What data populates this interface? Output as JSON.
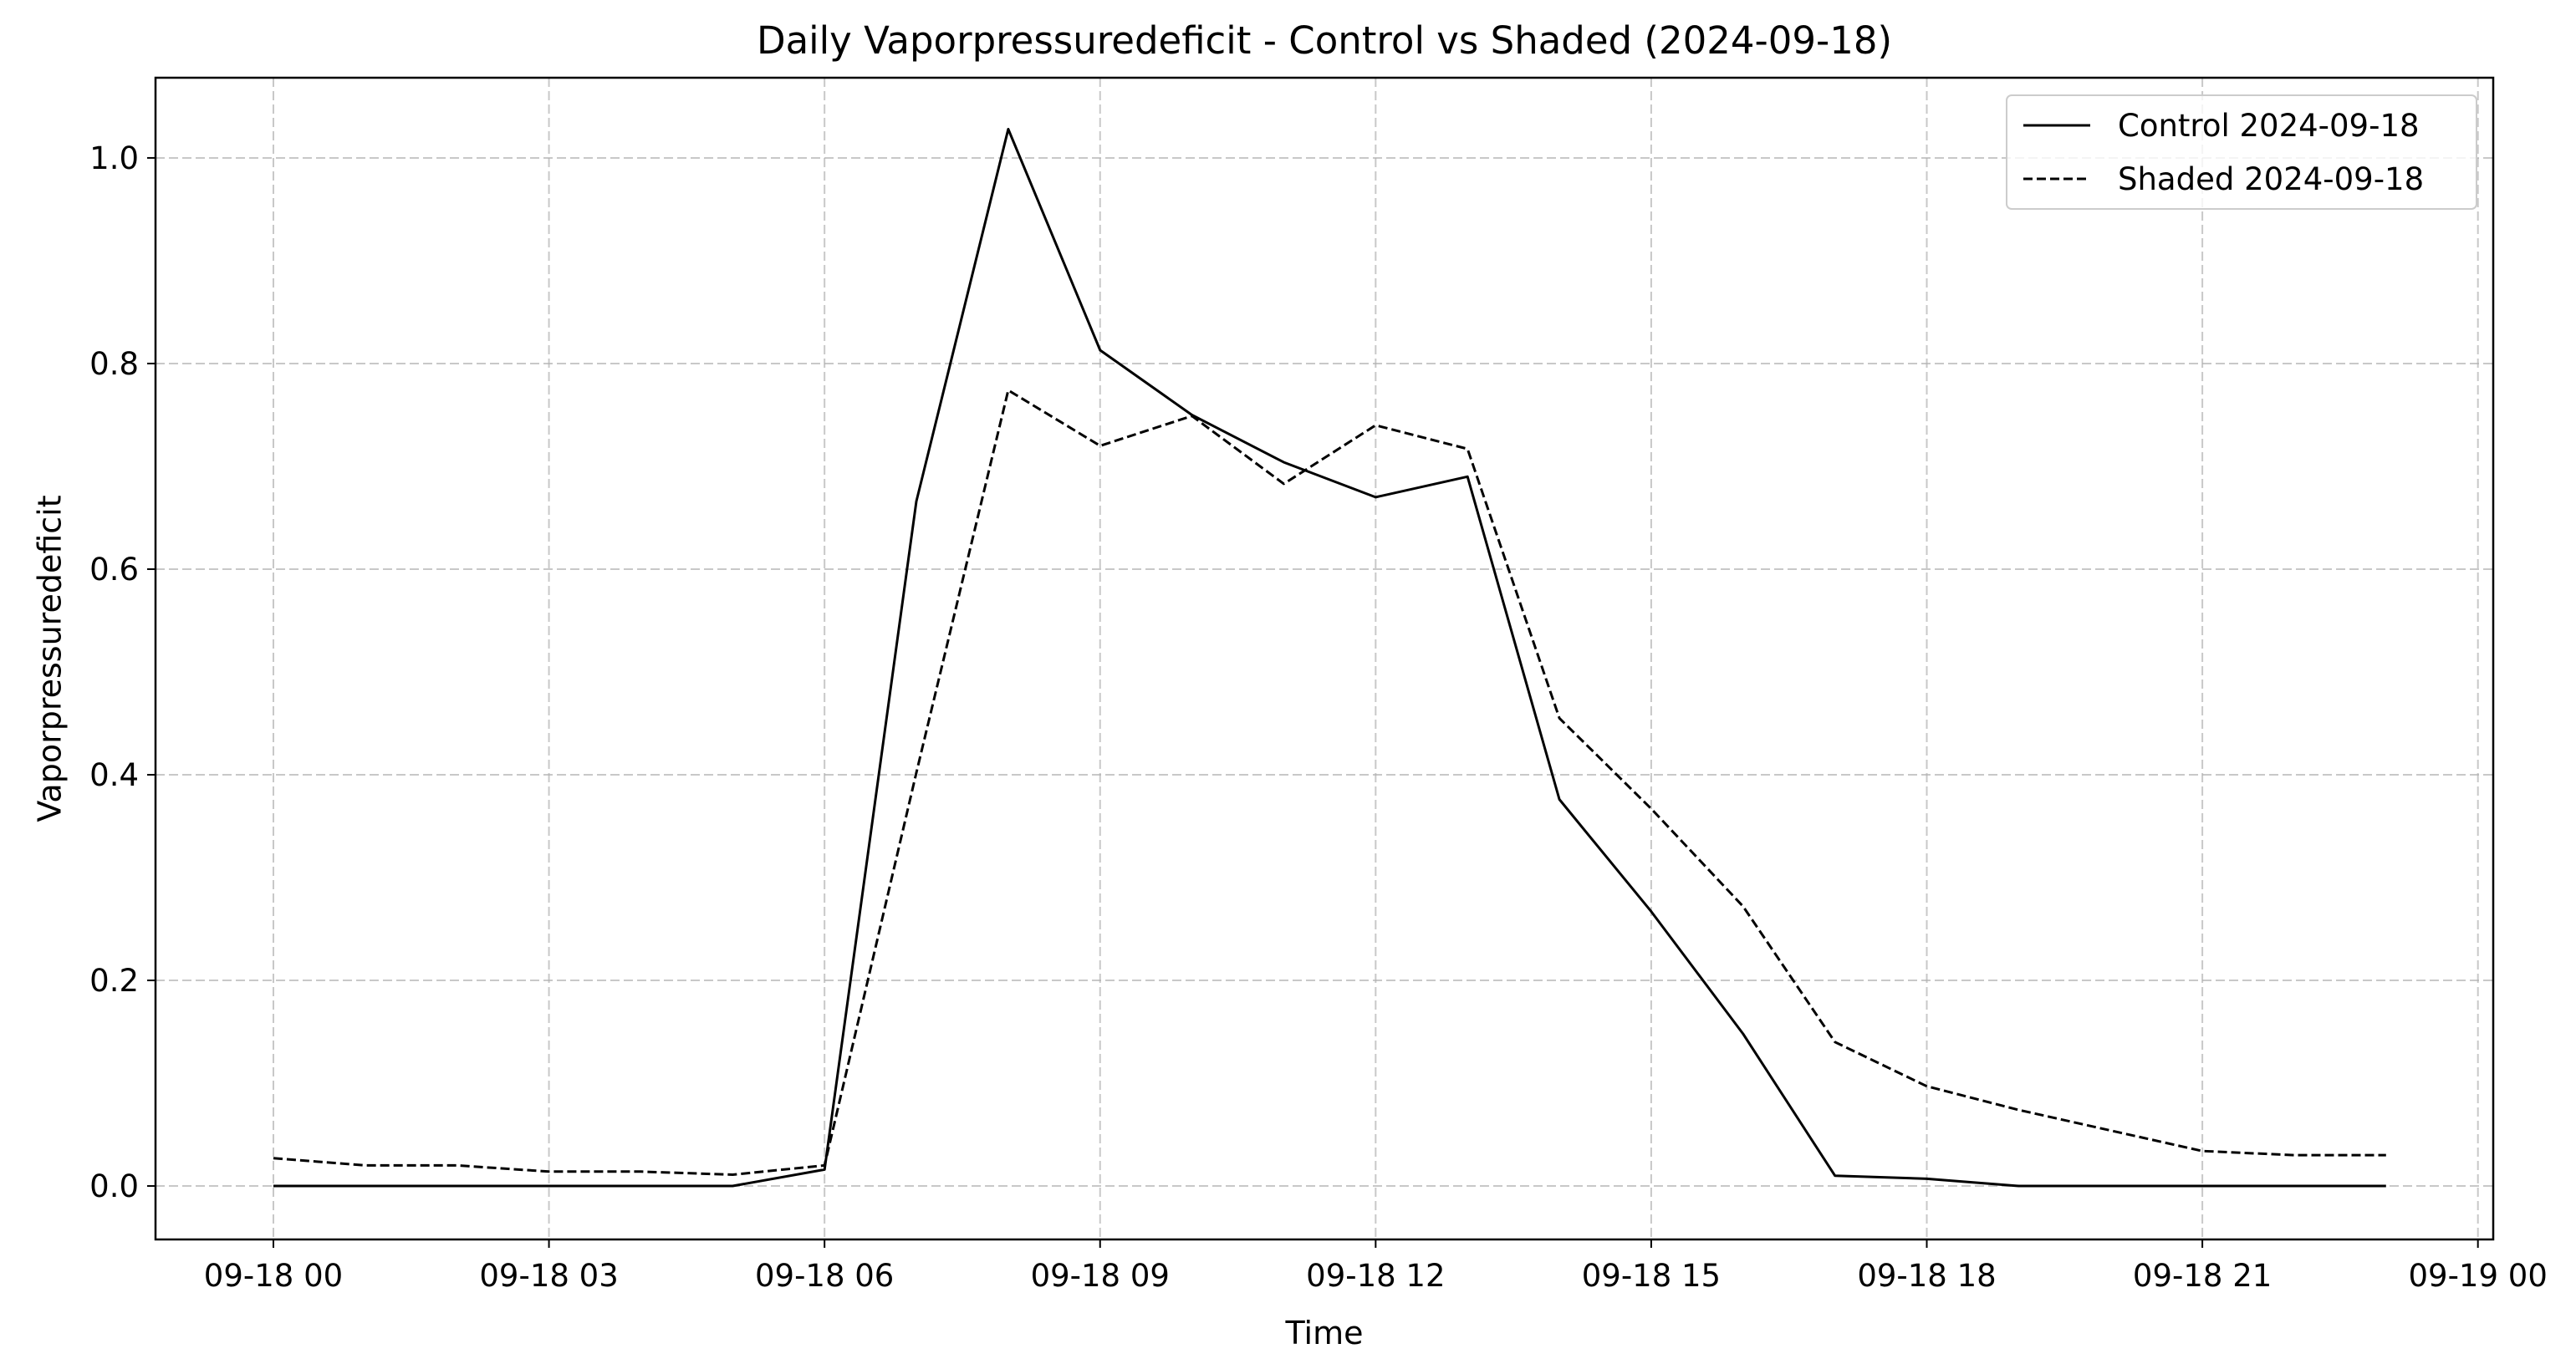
{
  "chart_data": {
    "type": "line",
    "title": "Daily Vaporpressuredeficit - Control vs Shaded (2024-09-18)",
    "xlabel": "Time",
    "ylabel": "Vaporpressuredeficit",
    "x_axis": {
      "kind": "datetime",
      "range": [
        "2024-09-17 22:43",
        "2024-09-19 00:10"
      ],
      "ticks": [
        {
          "value": "2024-09-18 00:00",
          "label": "09-18 00"
        },
        {
          "value": "2024-09-18 03:00",
          "label": "09-18 03"
        },
        {
          "value": "2024-09-18 06:00",
          "label": "09-18 06"
        },
        {
          "value": "2024-09-18 09:00",
          "label": "09-18 09"
        },
        {
          "value": "2024-09-18 12:00",
          "label": "09-18 12"
        },
        {
          "value": "2024-09-18 15:00",
          "label": "09-18 15"
        },
        {
          "value": "2024-09-18 18:00",
          "label": "09-18 18"
        },
        {
          "value": "2024-09-18 21:00",
          "label": "09-18 21"
        },
        {
          "value": "2024-09-19 00:00",
          "label": "09-19 00"
        }
      ]
    },
    "y_axis": {
      "range": [
        -0.052,
        1.078
      ],
      "ticks": [
        {
          "value": 0.0,
          "label": "0.0"
        },
        {
          "value": 0.2,
          "label": "0.2"
        },
        {
          "value": 0.4,
          "label": "0.4"
        },
        {
          "value": 0.6,
          "label": "0.6"
        },
        {
          "value": 0.8,
          "label": "0.8"
        },
        {
          "value": 1.0,
          "label": "1.0"
        }
      ]
    },
    "grid": true,
    "legend_position": "top-right",
    "series": [
      {
        "name": "Control 2024-09-18",
        "line_style": "solid",
        "color": "#000000",
        "points": [
          {
            "x": "2024-09-18 00:00",
            "y": 0.0
          },
          {
            "x": "2024-09-18 05:00",
            "y": 0.0
          },
          {
            "x": "2024-09-18 06:00",
            "y": 0.016
          },
          {
            "x": "2024-09-18 07:00",
            "y": 0.666
          },
          {
            "x": "2024-09-18 08:00",
            "y": 1.028
          },
          {
            "x": "2024-09-18 09:00",
            "y": 0.813
          },
          {
            "x": "2024-09-18 10:00",
            "y": 0.75
          },
          {
            "x": "2024-09-18 11:00",
            "y": 0.704
          },
          {
            "x": "2024-09-18 12:00",
            "y": 0.67
          },
          {
            "x": "2024-09-18 13:00",
            "y": 0.69
          },
          {
            "x": "2024-09-18 14:00",
            "y": 0.376
          },
          {
            "x": "2024-09-18 15:00",
            "y": 0.267
          },
          {
            "x": "2024-09-18 16:00",
            "y": 0.148
          },
          {
            "x": "2024-09-18 17:00",
            "y": 0.01
          },
          {
            "x": "2024-09-18 18:00",
            "y": 0.007
          },
          {
            "x": "2024-09-18 19:00",
            "y": 0.0
          },
          {
            "x": "2024-09-18 23:00",
            "y": 0.0
          }
        ]
      },
      {
        "name": "Shaded 2024-09-18",
        "line_style": "dashed",
        "color": "#000000",
        "points": [
          {
            "x": "2024-09-18 00:00",
            "y": 0.027
          },
          {
            "x": "2024-09-18 01:00",
            "y": 0.02
          },
          {
            "x": "2024-09-18 02:00",
            "y": 0.02
          },
          {
            "x": "2024-09-18 03:00",
            "y": 0.014
          },
          {
            "x": "2024-09-18 04:00",
            "y": 0.014
          },
          {
            "x": "2024-09-18 05:00",
            "y": 0.011
          },
          {
            "x": "2024-09-18 06:00",
            "y": 0.02
          },
          {
            "x": "2024-09-18 07:00",
            "y": 0.402
          },
          {
            "x": "2024-09-18 08:00",
            "y": 0.774
          },
          {
            "x": "2024-09-18 09:00",
            "y": 0.72
          },
          {
            "x": "2024-09-18 10:00",
            "y": 0.749
          },
          {
            "x": "2024-09-18 11:00",
            "y": 0.683
          },
          {
            "x": "2024-09-18 12:00",
            "y": 0.74
          },
          {
            "x": "2024-09-18 13:00",
            "y": 0.717
          },
          {
            "x": "2024-09-18 14:00",
            "y": 0.455
          },
          {
            "x": "2024-09-18 15:00",
            "y": 0.367
          },
          {
            "x": "2024-09-18 16:00",
            "y": 0.272
          },
          {
            "x": "2024-09-18 17:00",
            "y": 0.14
          },
          {
            "x": "2024-09-18 18:00",
            "y": 0.097
          },
          {
            "x": "2024-09-18 19:00",
            "y": 0.074
          },
          {
            "x": "2024-09-18 20:00",
            "y": 0.054
          },
          {
            "x": "2024-09-18 21:00",
            "y": 0.034
          },
          {
            "x": "2024-09-18 22:00",
            "y": 0.03
          },
          {
            "x": "2024-09-18 23:00",
            "y": 0.03
          }
        ]
      }
    ]
  }
}
